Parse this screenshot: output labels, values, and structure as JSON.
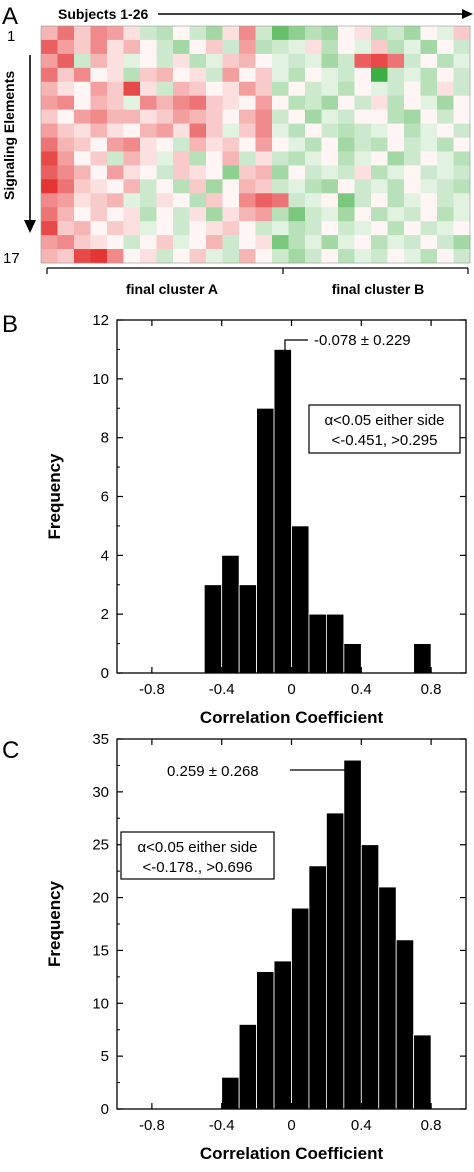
{
  "panels": {
    "a": {
      "letter": "A"
    },
    "b": {
      "letter": "B"
    },
    "c": {
      "letter": "C"
    }
  },
  "heatmap": {
    "subjects_label": "Subjects 1-26",
    "signaling_label": "Signaling Elements",
    "row_first": "1",
    "row_last": "17",
    "cluster_a_label": "final cluster A",
    "cluster_b_label": "final cluster B"
  },
  "colors": {
    "bar": "#000000",
    "red": "#e02020",
    "green": "#2aa02a",
    "neutral": "#f2f2f2"
  },
  "chart_data": [
    {
      "type": "heatmap",
      "x": "subjects",
      "y": "signaling elements",
      "ncols": 26,
      "nrows": 17,
      "cluster_split_after_col": 14,
      "color_scale": "green (negative) - white - red (positive)",
      "matrix": [
        [
          0.3,
          0.6,
          0.2,
          0.5,
          0.4,
          0.1,
          -0.2,
          -0.3,
          0.0,
          -0.2,
          -0.4,
          0.1,
          0.5,
          -0.2,
          -0.7,
          -0.5,
          -0.3,
          -0.4,
          0.0,
          0.1,
          -0.3,
          -0.2,
          -0.4,
          0.0,
          -0.1,
          0.2
        ],
        [
          0.7,
          0.4,
          0.2,
          0.5,
          0.1,
          0.3,
          0.0,
          -0.2,
          -0.4,
          0.0,
          0.2,
          -0.2,
          0.4,
          -0.3,
          -0.2,
          -0.1,
          0.1,
          -0.3,
          0.0,
          -0.1,
          0.2,
          -0.3,
          -0.1,
          -0.4,
          0.0,
          -0.2
        ],
        [
          0.4,
          0.7,
          -0.2,
          0.3,
          0.1,
          -0.1,
          0.0,
          -0.2,
          0.1,
          -0.3,
          -0.1,
          0.2,
          0.3,
          0.0,
          -0.1,
          -0.2,
          -0.1,
          -0.4,
          -0.2,
          0.7,
          0.8,
          0.6,
          -0.2,
          0.0,
          -0.3,
          -0.1
        ],
        [
          0.6,
          0.2,
          0.5,
          0.0,
          0.1,
          -0.3,
          0.2,
          0.3,
          0.0,
          0.1,
          -0.2,
          0.4,
          0.0,
          0.2,
          -0.1,
          -0.3,
          0.0,
          -0.1,
          -0.2,
          0.0,
          -0.9,
          -0.2,
          -0.1,
          -0.3,
          0.0,
          -0.2
        ],
        [
          0.3,
          0.1,
          0.0,
          0.4,
          0.2,
          0.8,
          0.1,
          -0.2,
          0.3,
          0.2,
          0.0,
          0.1,
          0.4,
          0.2,
          -0.3,
          0.0,
          -0.2,
          -0.1,
          -0.3,
          0.0,
          -0.1,
          -0.2,
          0.0,
          -0.3,
          0.1,
          -0.2
        ],
        [
          0.4,
          0.5,
          0.0,
          0.3,
          0.2,
          -0.1,
          0.5,
          0.3,
          0.5,
          0.6,
          0.2,
          0.1,
          0.0,
          0.4,
          0.0,
          -0.3,
          -0.2,
          -0.4,
          0.0,
          -0.2,
          0.1,
          -0.3,
          0.0,
          -0.1,
          -0.4,
          0.0
        ],
        [
          0.2,
          0.0,
          0.4,
          0.5,
          0.3,
          0.3,
          0.1,
          0.2,
          0.4,
          0.3,
          0.2,
          0.0,
          0.3,
          0.5,
          -0.2,
          0.0,
          -0.4,
          -0.1,
          -0.2,
          0.0,
          0.0,
          -0.3,
          -0.4,
          0.0,
          -0.2,
          0.0
        ],
        [
          0.4,
          0.2,
          0.1,
          0.3,
          0.1,
          0.0,
          0.3,
          0.4,
          0.1,
          0.6,
          0.2,
          -0.1,
          0.2,
          0.5,
          -0.1,
          -0.3,
          0.0,
          -0.2,
          -0.3,
          -0.2,
          -0.1,
          0.0,
          -0.3,
          -0.1,
          0.0,
          -0.2
        ],
        [
          0.6,
          0.3,
          0.2,
          0.0,
          0.4,
          0.5,
          0.1,
          0.0,
          -0.2,
          0.3,
          0.1,
          0.2,
          0.0,
          0.4,
          0.0,
          -0.1,
          -0.3,
          0.0,
          -0.4,
          -0.2,
          -0.3,
          0.0,
          -0.2,
          -0.1,
          -0.3,
          0.0
        ],
        [
          0.8,
          0.4,
          0.0,
          0.2,
          -0.2,
          0.3,
          0.1,
          -0.1,
          0.2,
          -0.3,
          0.0,
          0.3,
          -0.2,
          0.1,
          -0.2,
          -0.3,
          -0.1,
          0.0,
          -0.3,
          -0.1,
          0.0,
          -0.4,
          -0.2,
          0.0,
          -0.1,
          -0.3
        ],
        [
          0.7,
          0.5,
          0.3,
          0.0,
          0.4,
          0.1,
          0.0,
          -0.2,
          0.2,
          0.1,
          0.0,
          -0.5,
          0.2,
          0.3,
          -0.4,
          0.0,
          -0.2,
          -0.1,
          -0.2,
          0.1,
          -0.3,
          -0.1,
          0.0,
          -0.2,
          -0.1,
          -0.2
        ],
        [
          0.9,
          0.6,
          0.2,
          0.1,
          0.0,
          0.3,
          -0.2,
          0.0,
          -0.3,
          0.2,
          -0.4,
          0.0,
          0.3,
          0.2,
          -0.2,
          -0.1,
          -0.3,
          -0.4,
          0.0,
          -0.2,
          -0.1,
          -0.3,
          0.0,
          -0.1,
          -0.2,
          -0.3
        ],
        [
          0.5,
          0.4,
          0.1,
          0.2,
          0.3,
          -0.1,
          -0.2,
          0.1,
          0.0,
          -0.3,
          0.2,
          0.0,
          0.5,
          0.7,
          0.6,
          -0.2,
          -0.1,
          0.0,
          -0.6,
          -0.2,
          0.0,
          -0.3,
          -0.1,
          0.0,
          -0.2,
          -0.1
        ],
        [
          0.6,
          0.3,
          0.0,
          0.2,
          0.0,
          0.1,
          -0.3,
          0.0,
          -0.2,
          0.1,
          -0.4,
          0.1,
          0.3,
          0.4,
          -0.3,
          -0.6,
          -0.2,
          -0.1,
          -0.4,
          0.0,
          -0.3,
          -0.1,
          -0.2,
          0.0,
          -0.3,
          -0.1
        ],
        [
          0.8,
          0.2,
          0.3,
          0.0,
          0.2,
          0.1,
          -0.1,
          0.0,
          -0.2,
          0.0,
          0.1,
          0.2,
          0.0,
          -0.2,
          -0.1,
          -0.3,
          -0.2,
          0.0,
          -0.2,
          -0.1,
          0.0,
          -0.3,
          0.0,
          -0.2,
          -0.1,
          0.0
        ],
        [
          0.4,
          0.5,
          0.2,
          0.1,
          0.0,
          -0.2,
          0.0,
          0.2,
          -0.1,
          0.0,
          0.3,
          -0.2,
          0.0,
          0.1,
          -0.6,
          -0.3,
          -0.1,
          -0.4,
          -0.1,
          0.0,
          -0.3,
          -0.1,
          -0.2,
          0.0,
          -0.2,
          -0.4
        ],
        [
          0.3,
          0.2,
          0.8,
          0.9,
          0.5,
          0.0,
          0.1,
          -0.2,
          0.0,
          0.2,
          -0.1,
          -0.2,
          0.3,
          0.0,
          -0.2,
          -0.4,
          -0.2,
          0.0,
          -0.3,
          -0.1,
          -0.2,
          0.0,
          -0.1,
          -0.3,
          0.0,
          -0.2
        ]
      ]
    },
    {
      "type": "bar",
      "xlabel": "Correlation  Coefficient",
      "ylabel": "Frequency",
      "xlim": [
        -1.0,
        1.0
      ],
      "ylim": [
        0,
        12
      ],
      "xticks": [
        -0.8,
        -0.4,
        0,
        0.4,
        0.8
      ],
      "xtick_labels": [
        "-0.8",
        "-0.4",
        "0",
        "0.4",
        "0.8"
      ],
      "yticks": [
        0,
        2,
        4,
        6,
        8,
        10,
        12
      ],
      "bin_width": 0.1,
      "bins": [
        {
          "x0": -0.5,
          "x1": -0.4,
          "value": 3
        },
        {
          "x0": -0.4,
          "x1": -0.3,
          "value": 4
        },
        {
          "x0": -0.3,
          "x1": -0.2,
          "value": 3
        },
        {
          "x0": -0.2,
          "x1": -0.1,
          "value": 9
        },
        {
          "x0": -0.1,
          "x1": 0.0,
          "value": 11
        },
        {
          "x0": 0.0,
          "x1": 0.1,
          "value": 5
        },
        {
          "x0": 0.1,
          "x1": 0.2,
          "value": 2
        },
        {
          "x0": 0.2,
          "x1": 0.3,
          "value": 2
        },
        {
          "x0": 0.3,
          "x1": 0.4,
          "value": 1
        },
        {
          "x0": 0.7,
          "x1": 0.8,
          "value": 1
        }
      ],
      "mean_annotation": "-0.078 ± 0.229",
      "alpha_line1": "α<0.05 either side",
      "alpha_line2": "<-0.451, >0.295"
    },
    {
      "type": "bar",
      "xlabel": "Correlation  Coefficient",
      "ylabel": "Frequency",
      "xlim": [
        -1.0,
        1.0
      ],
      "ylim": [
        0,
        35
      ],
      "xticks": [
        -0.8,
        -0.4,
        0,
        0.4,
        0.8
      ],
      "xtick_labels": [
        "-0.8",
        "-0.4",
        "0",
        "0.4",
        "0.8"
      ],
      "yticks": [
        0,
        5,
        10,
        15,
        20,
        25,
        30,
        35
      ],
      "bin_width": 0.1,
      "bins": [
        {
          "x0": -0.4,
          "x1": -0.3,
          "value": 3
        },
        {
          "x0": -0.3,
          "x1": -0.2,
          "value": 8
        },
        {
          "x0": -0.2,
          "x1": -0.1,
          "value": 13
        },
        {
          "x0": -0.1,
          "x1": 0.0,
          "value": 14
        },
        {
          "x0": 0.0,
          "x1": 0.1,
          "value": 19
        },
        {
          "x0": 0.1,
          "x1": 0.2,
          "value": 23
        },
        {
          "x0": 0.2,
          "x1": 0.3,
          "value": 28
        },
        {
          "x0": 0.3,
          "x1": 0.4,
          "value": 33
        },
        {
          "x0": 0.4,
          "x1": 0.5,
          "value": 25
        },
        {
          "x0": 0.5,
          "x1": 0.6,
          "value": 21
        },
        {
          "x0": 0.6,
          "x1": 0.7,
          "value": 16
        },
        {
          "x0": 0.7,
          "x1": 0.8,
          "value": 7
        }
      ],
      "mean_annotation": "0.259 ± 0.268",
      "alpha_line1": "α<0.05 either side",
      "alpha_line2": "<-0.178., >0.696"
    }
  ]
}
